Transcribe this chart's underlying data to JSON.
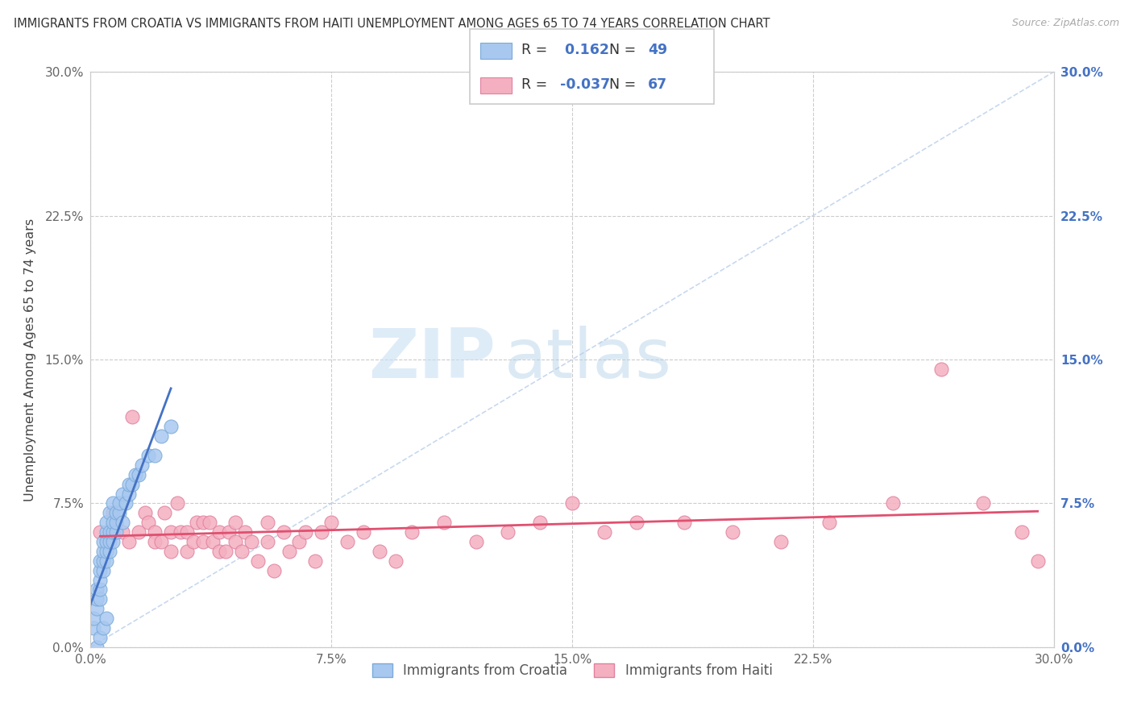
{
  "title": "IMMIGRANTS FROM CROATIA VS IMMIGRANTS FROM HAITI UNEMPLOYMENT AMONG AGES 65 TO 74 YEARS CORRELATION CHART",
  "source": "Source: ZipAtlas.com",
  "ylabel": "Unemployment Among Ages 65 to 74 years",
  "xlim": [
    0.0,
    0.3
  ],
  "ylim": [
    0.0,
    0.3
  ],
  "xticks": [
    0.0,
    0.075,
    0.15,
    0.225,
    0.3
  ],
  "xticklabels": [
    "0.0%",
    "7.5%",
    "15.0%",
    "22.5%",
    "30.0%"
  ],
  "yticklabels": [
    "0.0%",
    "7.5%",
    "15.0%",
    "22.5%",
    "30.0%"
  ],
  "croatia_color": "#a8c8f0",
  "croatia_edge_color": "#7aaad8",
  "croatia_line_color": "#4472c4",
  "haiti_color": "#f4b0c0",
  "haiti_edge_color": "#e080a0",
  "haiti_line_color": "#e05070",
  "croatia_R": 0.162,
  "croatia_N": 49,
  "haiti_R": -0.037,
  "haiti_N": 67,
  "legend_label_croatia": "Immigrants from Croatia",
  "legend_label_haiti": "Immigrants from Haiti",
  "watermark_zip": "ZIP",
  "watermark_atlas": "atlas",
  "croatia_x": [
    0.001,
    0.001,
    0.002,
    0.002,
    0.002,
    0.002,
    0.003,
    0.003,
    0.003,
    0.003,
    0.003,
    0.003,
    0.004,
    0.004,
    0.004,
    0.004,
    0.004,
    0.005,
    0.005,
    0.005,
    0.005,
    0.005,
    0.005,
    0.006,
    0.006,
    0.006,
    0.006,
    0.007,
    0.007,
    0.007,
    0.007,
    0.008,
    0.008,
    0.008,
    0.009,
    0.009,
    0.01,
    0.01,
    0.011,
    0.012,
    0.012,
    0.013,
    0.014,
    0.015,
    0.016,
    0.018,
    0.02,
    0.022,
    0.025
  ],
  "croatia_y": [
    0.01,
    0.015,
    0.02,
    0.025,
    0.03,
    0.0,
    0.025,
    0.03,
    0.035,
    0.04,
    0.045,
    0.005,
    0.04,
    0.045,
    0.05,
    0.055,
    0.01,
    0.045,
    0.05,
    0.055,
    0.06,
    0.065,
    0.015,
    0.05,
    0.055,
    0.06,
    0.07,
    0.055,
    0.06,
    0.065,
    0.075,
    0.06,
    0.065,
    0.07,
    0.07,
    0.075,
    0.065,
    0.08,
    0.075,
    0.08,
    0.085,
    0.085,
    0.09,
    0.09,
    0.095,
    0.1,
    0.1,
    0.11,
    0.115
  ],
  "haiti_x": [
    0.003,
    0.005,
    0.007,
    0.008,
    0.01,
    0.012,
    0.013,
    0.015,
    0.017,
    0.018,
    0.02,
    0.02,
    0.022,
    0.023,
    0.025,
    0.025,
    0.027,
    0.028,
    0.03,
    0.03,
    0.032,
    0.033,
    0.035,
    0.035,
    0.037,
    0.038,
    0.04,
    0.04,
    0.042,
    0.043,
    0.045,
    0.045,
    0.047,
    0.048,
    0.05,
    0.052,
    0.055,
    0.055,
    0.057,
    0.06,
    0.062,
    0.065,
    0.067,
    0.07,
    0.072,
    0.075,
    0.08,
    0.085,
    0.09,
    0.095,
    0.1,
    0.11,
    0.12,
    0.13,
    0.14,
    0.15,
    0.16,
    0.17,
    0.185,
    0.2,
    0.215,
    0.23,
    0.25,
    0.265,
    0.278,
    0.29,
    0.295
  ],
  "haiti_y": [
    0.06,
    0.055,
    0.07,
    0.065,
    0.06,
    0.055,
    0.12,
    0.06,
    0.07,
    0.065,
    0.06,
    0.055,
    0.055,
    0.07,
    0.06,
    0.05,
    0.075,
    0.06,
    0.06,
    0.05,
    0.055,
    0.065,
    0.055,
    0.065,
    0.065,
    0.055,
    0.06,
    0.05,
    0.05,
    0.06,
    0.055,
    0.065,
    0.05,
    0.06,
    0.055,
    0.045,
    0.055,
    0.065,
    0.04,
    0.06,
    0.05,
    0.055,
    0.06,
    0.045,
    0.06,
    0.065,
    0.055,
    0.06,
    0.05,
    0.045,
    0.06,
    0.065,
    0.055,
    0.06,
    0.065,
    0.075,
    0.06,
    0.065,
    0.065,
    0.06,
    0.055,
    0.065,
    0.075,
    0.145,
    0.075,
    0.06,
    0.045
  ]
}
